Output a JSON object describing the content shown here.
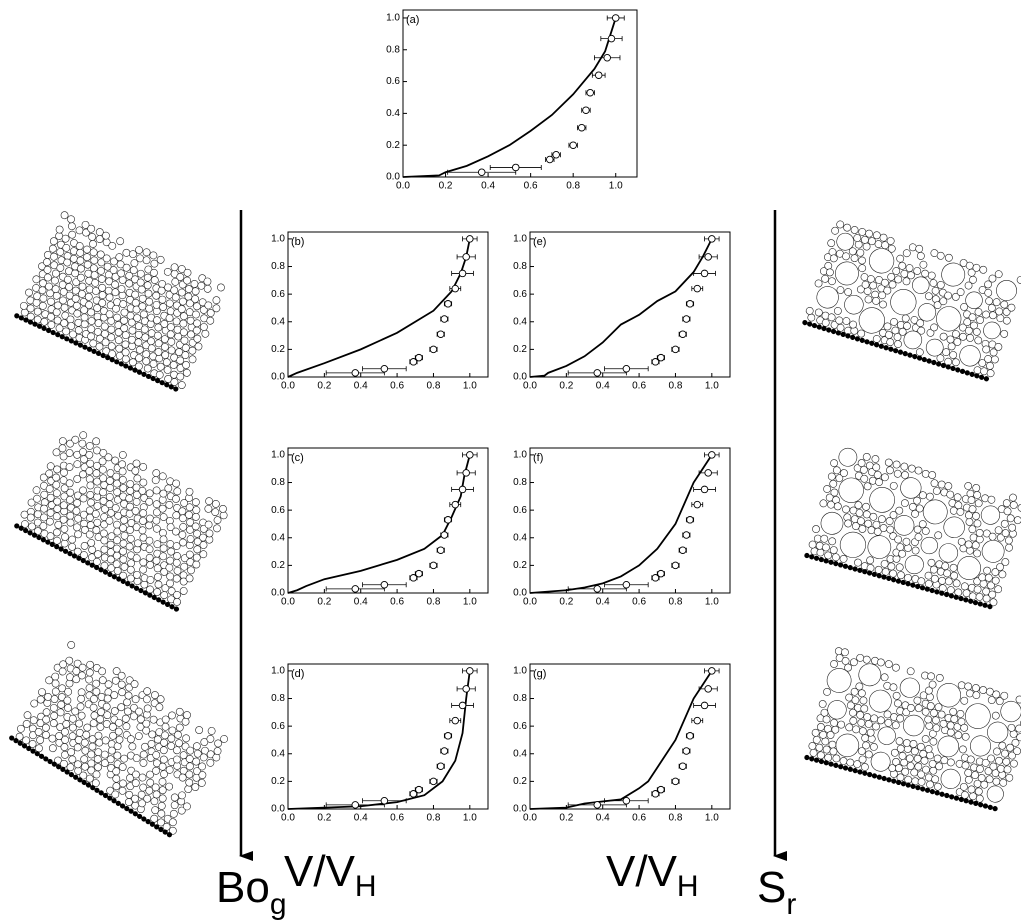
{
  "chart_data": [
    {
      "type": "line",
      "label": "(a)",
      "xlim": [
        0,
        1.1
      ],
      "ylim": [
        0,
        1.05
      ],
      "xticks": [
        {
          "value": 0,
          "label": "0.0"
        },
        {
          "value": 0.2,
          "label": "0.2"
        },
        {
          "value": 0.4,
          "label": "0.4"
        },
        {
          "value": 0.6,
          "label": "0.6"
        },
        {
          "value": 0.8,
          "label": "0.8"
        },
        {
          "value": 1,
          "label": "1.0"
        }
      ],
      "yticks": [
        {
          "value": 0,
          "label": "0.0"
        },
        {
          "value": 0.2,
          "label": "0.2"
        },
        {
          "value": 0.4,
          "label": "0.4"
        },
        {
          "value": 0.6,
          "label": "0.6"
        },
        {
          "value": 0.8,
          "label": "0.8"
        },
        {
          "value": 1,
          "label": "1.0"
        }
      ],
      "curve": {
        "color": "#000000",
        "x": [
          0,
          0.17,
          0.2,
          0.3,
          0.4,
          0.5,
          0.6,
          0.7,
          0.8,
          0.9,
          0.95,
          1.0
        ],
        "y": [
          0,
          0.01,
          0.03,
          0.07,
          0.13,
          0.2,
          0.29,
          0.39,
          0.52,
          0.68,
          0.79,
          1.0
        ]
      },
      "points": {
        "x": [
          0.37,
          0.53,
          0.69,
          0.72,
          0.8,
          0.84,
          0.86,
          0.88,
          0.92,
          0.96,
          0.98,
          1.0
        ],
        "y": [
          0.03,
          0.06,
          0.11,
          0.14,
          0.2,
          0.31,
          0.42,
          0.53,
          0.64,
          0.75,
          0.87,
          1.0
        ],
        "xerr": [
          0.16,
          0.12,
          0.02,
          0.02,
          0.02,
          0.02,
          0.02,
          0.02,
          0.03,
          0.06,
          0.05,
          0.04
        ]
      }
    },
    {
      "type": "line",
      "label": "(b)",
      "xlim": [
        0,
        1.1
      ],
      "ylim": [
        0,
        1.05
      ],
      "xticks": [
        {
          "value": 0,
          "label": "0.0"
        },
        {
          "value": 0.2,
          "label": "0.2"
        },
        {
          "value": 0.4,
          "label": "0.4"
        },
        {
          "value": 0.6,
          "label": "0.6"
        },
        {
          "value": 0.8,
          "label": "0.8"
        },
        {
          "value": 1,
          "label": "1.0"
        }
      ],
      "yticks": [
        {
          "value": 0,
          "label": "0.0"
        },
        {
          "value": 0.2,
          "label": "0.2"
        },
        {
          "value": 0.4,
          "label": "0.4"
        },
        {
          "value": 0.6,
          "label": "0.6"
        },
        {
          "value": 0.8,
          "label": "0.8"
        },
        {
          "value": 1,
          "label": "1.0"
        }
      ],
      "curve": {
        "color": "#000000",
        "x": [
          0,
          0.05,
          0.2,
          0.4,
          0.6,
          0.8,
          0.9,
          0.95,
          0.98,
          1.0
        ],
        "y": [
          0,
          0.03,
          0.1,
          0.2,
          0.32,
          0.48,
          0.62,
          0.75,
          0.87,
          1.0
        ]
      },
      "points": {
        "x": [
          0.37,
          0.53,
          0.69,
          0.72,
          0.8,
          0.84,
          0.86,
          0.88,
          0.92,
          0.96,
          0.98,
          1.0
        ],
        "y": [
          0.03,
          0.06,
          0.11,
          0.14,
          0.2,
          0.31,
          0.42,
          0.53,
          0.64,
          0.75,
          0.87,
          1.0
        ],
        "xerr": [
          0.16,
          0.12,
          0.02,
          0.02,
          0.02,
          0.02,
          0.02,
          0.02,
          0.03,
          0.06,
          0.05,
          0.04
        ]
      }
    },
    {
      "type": "line",
      "label": "(c)",
      "xlim": [
        0,
        1.1
      ],
      "ylim": [
        0,
        1.05
      ],
      "xticks": [
        {
          "value": 0,
          "label": "0.0"
        },
        {
          "value": 0.2,
          "label": "0.2"
        },
        {
          "value": 0.4,
          "label": "0.4"
        },
        {
          "value": 0.6,
          "label": "0.6"
        },
        {
          "value": 0.8,
          "label": "0.8"
        },
        {
          "value": 1,
          "label": "1.0"
        }
      ],
      "yticks": [
        {
          "value": 0,
          "label": "0.0"
        },
        {
          "value": 0.2,
          "label": "0.2"
        },
        {
          "value": 0.4,
          "label": "0.4"
        },
        {
          "value": 0.6,
          "label": "0.6"
        },
        {
          "value": 0.8,
          "label": "0.8"
        },
        {
          "value": 1,
          "label": "1.0"
        }
      ],
      "curve": {
        "color": "#000000",
        "x": [
          0,
          0.05,
          0.1,
          0.2,
          0.4,
          0.6,
          0.75,
          0.85,
          0.9,
          0.95,
          0.97,
          1.0
        ],
        "y": [
          0,
          0.02,
          0.05,
          0.1,
          0.16,
          0.24,
          0.32,
          0.42,
          0.55,
          0.7,
          0.85,
          1.0
        ]
      },
      "points": {
        "x": [
          0.37,
          0.53,
          0.69,
          0.72,
          0.8,
          0.84,
          0.86,
          0.88,
          0.92,
          0.96,
          0.98,
          1.0
        ],
        "y": [
          0.03,
          0.06,
          0.11,
          0.14,
          0.2,
          0.31,
          0.42,
          0.53,
          0.64,
          0.75,
          0.87,
          1.0
        ],
        "xerr": [
          0.16,
          0.12,
          0.02,
          0.02,
          0.02,
          0.02,
          0.02,
          0.02,
          0.03,
          0.06,
          0.05,
          0.04
        ]
      }
    },
    {
      "type": "line",
      "label": "(d)",
      "xlim": [
        0,
        1.1
      ],
      "ylim": [
        0,
        1.05
      ],
      "xticks": [
        {
          "value": 0,
          "label": "0.0"
        },
        {
          "value": 0.2,
          "label": "0.2"
        },
        {
          "value": 0.4,
          "label": "0.4"
        },
        {
          "value": 0.6,
          "label": "0.6"
        },
        {
          "value": 0.8,
          "label": "0.8"
        },
        {
          "value": 1,
          "label": "1.0"
        }
      ],
      "yticks": [
        {
          "value": 0,
          "label": "0.0"
        },
        {
          "value": 0.2,
          "label": "0.2"
        },
        {
          "value": 0.4,
          "label": "0.4"
        },
        {
          "value": 0.6,
          "label": "0.6"
        },
        {
          "value": 0.8,
          "label": "0.8"
        },
        {
          "value": 1,
          "label": "1.0"
        }
      ],
      "curve": {
        "color": "#000000",
        "x": [
          0,
          0.4,
          0.6,
          0.75,
          0.85,
          0.92,
          0.96,
          0.98,
          1.0
        ],
        "y": [
          0,
          0.02,
          0.05,
          0.1,
          0.2,
          0.35,
          0.55,
          0.8,
          1.0
        ]
      },
      "points": {
        "x": [
          0.37,
          0.53,
          0.69,
          0.72,
          0.8,
          0.84,
          0.86,
          0.88,
          0.92,
          0.96,
          0.98,
          1.0
        ],
        "y": [
          0.03,
          0.06,
          0.11,
          0.14,
          0.2,
          0.31,
          0.42,
          0.53,
          0.64,
          0.75,
          0.87,
          1.0
        ],
        "xerr": [
          0.16,
          0.12,
          0.02,
          0.02,
          0.02,
          0.02,
          0.02,
          0.02,
          0.03,
          0.06,
          0.05,
          0.04
        ]
      }
    },
    {
      "type": "line",
      "label": "(e)",
      "xlim": [
        0,
        1.1
      ],
      "ylim": [
        0,
        1.05
      ],
      "xticks": [
        {
          "value": 0,
          "label": "0.0"
        },
        {
          "value": 0.2,
          "label": "0.2"
        },
        {
          "value": 0.4,
          "label": "0.4"
        },
        {
          "value": 0.6,
          "label": "0.6"
        },
        {
          "value": 0.8,
          "label": "0.8"
        },
        {
          "value": 1,
          "label": "1.0"
        }
      ],
      "yticks": [
        {
          "value": 0,
          "label": "0.0"
        },
        {
          "value": 0.2,
          "label": "0.2"
        },
        {
          "value": 0.4,
          "label": "0.4"
        },
        {
          "value": 0.6,
          "label": "0.6"
        },
        {
          "value": 0.8,
          "label": "0.8"
        },
        {
          "value": 1,
          "label": "1.0"
        }
      ],
      "curve": {
        "color": "#000000",
        "x": [
          0,
          0.08,
          0.1,
          0.2,
          0.3,
          0.4,
          0.5,
          0.6,
          0.7,
          0.8,
          0.9,
          0.95,
          1.0
        ],
        "y": [
          0,
          0.01,
          0.03,
          0.08,
          0.15,
          0.25,
          0.38,
          0.45,
          0.55,
          0.62,
          0.76,
          0.87,
          1.0
        ]
      },
      "points": {
        "x": [
          0.37,
          0.53,
          0.69,
          0.72,
          0.8,
          0.84,
          0.86,
          0.88,
          0.92,
          0.96,
          0.98,
          1.0
        ],
        "y": [
          0.03,
          0.06,
          0.11,
          0.14,
          0.2,
          0.31,
          0.42,
          0.53,
          0.64,
          0.75,
          0.87,
          1.0
        ],
        "xerr": [
          0.16,
          0.12,
          0.02,
          0.02,
          0.02,
          0.02,
          0.02,
          0.02,
          0.03,
          0.06,
          0.05,
          0.04
        ]
      }
    },
    {
      "type": "line",
      "label": "(f)",
      "xlim": [
        0,
        1.1
      ],
      "ylim": [
        0,
        1.05
      ],
      "xticks": [
        {
          "value": 0,
          "label": "0.0"
        },
        {
          "value": 0.2,
          "label": "0.2"
        },
        {
          "value": 0.4,
          "label": "0.4"
        },
        {
          "value": 0.6,
          "label": "0.6"
        },
        {
          "value": 0.8,
          "label": "0.8"
        },
        {
          "value": 1,
          "label": "1.0"
        }
      ],
      "yticks": [
        {
          "value": 0,
          "label": "0.0"
        },
        {
          "value": 0.2,
          "label": "0.2"
        },
        {
          "value": 0.4,
          "label": "0.4"
        },
        {
          "value": 0.6,
          "label": "0.6"
        },
        {
          "value": 0.8,
          "label": "0.8"
        },
        {
          "value": 1,
          "label": "1.0"
        }
      ],
      "curve": {
        "color": "#000000",
        "x": [
          0,
          0.2,
          0.3,
          0.4,
          0.5,
          0.6,
          0.7,
          0.8,
          0.85,
          0.9,
          0.95,
          1.0
        ],
        "y": [
          0,
          0.02,
          0.04,
          0.07,
          0.12,
          0.2,
          0.32,
          0.5,
          0.65,
          0.8,
          0.9,
          1.0
        ]
      },
      "points": {
        "x": [
          0.37,
          0.53,
          0.69,
          0.72,
          0.8,
          0.84,
          0.86,
          0.88,
          0.92,
          0.96,
          0.98,
          1.0
        ],
        "y": [
          0.03,
          0.06,
          0.11,
          0.14,
          0.2,
          0.31,
          0.42,
          0.53,
          0.64,
          0.75,
          0.87,
          1.0
        ],
        "xerr": [
          0.16,
          0.12,
          0.02,
          0.02,
          0.02,
          0.02,
          0.02,
          0.02,
          0.03,
          0.06,
          0.05,
          0.04
        ]
      }
    },
    {
      "type": "line",
      "label": "(g)",
      "xlim": [
        0,
        1.1
      ],
      "ylim": [
        0,
        1.05
      ],
      "xticks": [
        {
          "value": 0,
          "label": "0.0"
        },
        {
          "value": 0.2,
          "label": "0.2"
        },
        {
          "value": 0.4,
          "label": "0.4"
        },
        {
          "value": 0.6,
          "label": "0.6"
        },
        {
          "value": 0.8,
          "label": "0.8"
        },
        {
          "value": 1,
          "label": "1.0"
        }
      ],
      "yticks": [
        {
          "value": 0,
          "label": "0.0"
        },
        {
          "value": 0.2,
          "label": "0.2"
        },
        {
          "value": 0.4,
          "label": "0.4"
        },
        {
          "value": 0.6,
          "label": "0.6"
        },
        {
          "value": 0.8,
          "label": "0.8"
        },
        {
          "value": 1,
          "label": "1.0"
        }
      ],
      "curve": {
        "color": "#000000",
        "x": [
          0,
          0.2,
          0.3,
          0.5,
          0.6,
          0.65,
          0.7,
          0.8,
          0.9,
          0.95,
          1.0
        ],
        "y": [
          0,
          0.01,
          0.04,
          0.07,
          0.15,
          0.2,
          0.3,
          0.5,
          0.8,
          0.9,
          1.0
        ]
      },
      "points": {
        "x": [
          0.37,
          0.53,
          0.69,
          0.72,
          0.8,
          0.84,
          0.86,
          0.88,
          0.92,
          0.96,
          0.98,
          1.0
        ],
        "y": [
          0.03,
          0.06,
          0.11,
          0.14,
          0.2,
          0.31,
          0.42,
          0.53,
          0.64,
          0.75,
          0.87,
          1.0
        ],
        "xerr": [
          0.16,
          0.12,
          0.02,
          0.02,
          0.02,
          0.02,
          0.02,
          0.02,
          0.03,
          0.06,
          0.05,
          0.04
        ]
      }
    }
  ],
  "labels": [
    {
      "main": "V/V",
      "sub": "H"
    },
    {
      "main": "V/V",
      "sub": "H"
    },
    {
      "main": "Bo",
      "sub": "g"
    },
    {
      "main": "S",
      "sub": "r"
    }
  ]
}
